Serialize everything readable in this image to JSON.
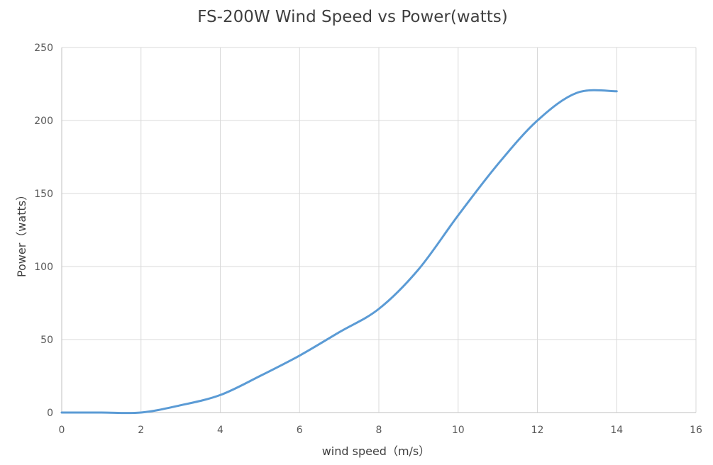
{
  "chart_data": {
    "type": "line",
    "title": "FS-200W Wind Speed vs Power(watts)",
    "xlabel": "wind speed（m/s）",
    "ylabel": "Power（watts）",
    "xlim": [
      0,
      16
    ],
    "ylim": [
      0,
      250
    ],
    "x_ticks": [
      0,
      2,
      4,
      6,
      8,
      10,
      12,
      14,
      16
    ],
    "y_ticks": [
      0,
      50,
      100,
      150,
      200,
      250
    ],
    "grid": true,
    "legend": "none",
    "series": [
      {
        "color": "#5b9bd5",
        "x": [
          0,
          1,
          2,
          3,
          4,
          5,
          6,
          7,
          8,
          9,
          10,
          11,
          12,
          13,
          14
        ],
        "y": [
          0,
          0,
          0,
          5,
          12,
          25,
          39,
          55,
          71,
          98,
          135,
          170,
          200,
          219,
          220
        ]
      }
    ]
  }
}
